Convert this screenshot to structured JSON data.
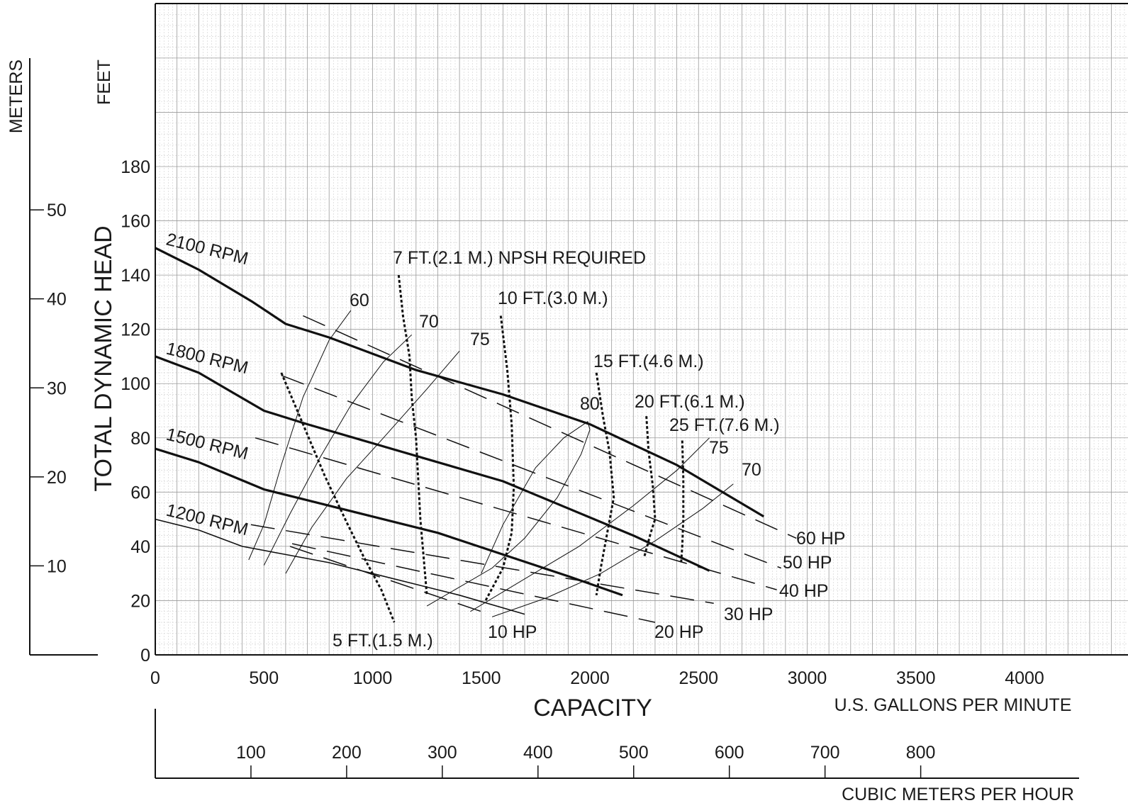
{
  "chart_data": {
    "type": "line",
    "title": "",
    "xlabel": "CAPACITY",
    "x_units_label": "U.S. GALLONS PER MINUTE",
    "secondary_x_units_label": "CUBIC METERS PER HOUR",
    "ylabel": "TOTAL DYNAMIC HEAD",
    "y_units_label": "FEET",
    "secondary_y_units_label": "METERS",
    "xlim": [
      0,
      4500
    ],
    "ylim": [
      0,
      240
    ],
    "x_ticks": [
      "0",
      "500",
      "1000",
      "1500",
      "2000",
      "2500",
      "3000",
      "3500",
      "4000"
    ],
    "y_ticks": [
      "0",
      "20",
      "40",
      "60",
      "80",
      "100",
      "120",
      "140",
      "160",
      "180"
    ],
    "secondary_x_ticks": [
      "100",
      "200",
      "300",
      "400",
      "500",
      "600",
      "700",
      "800"
    ],
    "secondary_y_ticks": [
      "10",
      "20",
      "30",
      "40",
      "50"
    ],
    "grid": true,
    "series": [
      {
        "name": "2100 RPM",
        "x": [
          0,
          200,
          450,
          600,
          800,
          1000,
          1200,
          1600,
          2000,
          2400,
          2800
        ],
        "y": [
          150,
          142,
          130,
          122,
          117,
          111,
          105,
          96,
          85,
          70,
          51
        ]
      },
      {
        "name": "1800 RPM",
        "x": [
          0,
          200,
          350,
          500,
          700,
          1000,
          1300,
          1600,
          1900,
          2200,
          2550
        ],
        "y": [
          110,
          104,
          97,
          90,
          85,
          78,
          71,
          64,
          54,
          44,
          31
        ]
      },
      {
        "name": "1500 RPM",
        "x": [
          0,
          200,
          350,
          500,
          700,
          1000,
          1300,
          1600,
          1900,
          2150
        ],
        "y": [
          76,
          71,
          66,
          61,
          57,
          51,
          45,
          37,
          29,
          22
        ]
      },
      {
        "name": "1200 RPM",
        "x": [
          0,
          200,
          400,
          600,
          800,
          1000,
          1200,
          1400,
          1700
        ],
        "y": [
          50,
          46,
          40,
          37,
          34,
          30,
          26,
          22,
          15
        ]
      }
    ],
    "hp_lines": [
      {
        "label": "60 HP",
        "x": [
          680,
          2950
        ],
        "y": [
          125,
          43
        ]
      },
      {
        "label": "50 HP",
        "x": [
          580,
          2880
        ],
        "y": [
          103,
          32
        ]
      },
      {
        "label": "40 HP",
        "x": [
          460,
          2860
        ],
        "y": [
          80,
          24
        ]
      },
      {
        "label": "30 HP",
        "x": [
          440,
          2570
        ],
        "y": [
          48,
          19
        ]
      },
      {
        "label": "20 HP",
        "x": [
          630,
          2300
        ],
        "y": [
          41,
          12
        ]
      },
      {
        "label": "10 HP",
        "x": [
          620,
          1500
        ],
        "y": [
          40,
          16
        ]
      }
    ],
    "npsh_curves": [
      {
        "label": "5 FT.(1.5 M.)",
        "x": [
          580,
          680,
          780,
          880,
          960,
          1040,
          1100
        ],
        "y": [
          104,
          85,
          66,
          49,
          36,
          24,
          12
        ]
      },
      {
        "label": "7 FT.(2.1 M.) NPSH REQUIRED",
        "x": [
          1120,
          1140,
          1170,
          1180,
          1200,
          1220,
          1250
        ],
        "y": [
          140,
          125,
          110,
          95,
          80,
          50,
          22
        ]
      },
      {
        "label": "10 FT.(3.0 M.)",
        "x": [
          1590,
          1620,
          1640,
          1650,
          1640,
          1600,
          1520
        ],
        "y": [
          125,
          105,
          85,
          62,
          45,
          32,
          20
        ]
      },
      {
        "label": "15 FT.(4.6 M.)",
        "x": [
          2030,
          2060,
          2090,
          2110,
          2080,
          2050,
          2030
        ],
        "y": [
          104,
          88,
          75,
          58,
          45,
          32,
          22
        ]
      },
      {
        "label": "20 FT.(6.1 M.)",
        "x": [
          2260,
          2270,
          2290,
          2300,
          2280,
          2250
        ],
        "y": [
          88,
          75,
          62,
          50,
          45,
          36
        ]
      },
      {
        "label": "25 FT.(7.6 M.)",
        "x": [
          2425,
          2430,
          2430,
          2425,
          2420
        ],
        "y": [
          79,
          65,
          50,
          40,
          34
        ]
      }
    ],
    "efficiency_curves": [
      {
        "label": "60",
        "x": [
          430,
          500,
          580,
          680,
          800,
          900
        ],
        "y": [
          35,
          48,
          70,
          95,
          116,
          127
        ]
      },
      {
        "label": "70",
        "x": [
          500,
          620,
          760,
          900,
          1050,
          1180
        ],
        "y": [
          33,
          52,
          73,
          92,
          108,
          118
        ]
      },
      {
        "label": "75",
        "x": [
          600,
          720,
          880,
          1050,
          1250,
          1400
        ],
        "y": [
          30,
          47,
          65,
          80,
          98,
          112
        ]
      },
      {
        "label": "80",
        "x": [
          1500,
          1600,
          1750,
          1880,
          1990,
          2000,
          1960,
          1850,
          1700,
          1550,
          1400,
          1250
        ],
        "y": [
          30,
          48,
          69,
          80,
          86,
          83,
          74,
          58,
          43,
          32,
          25,
          18
        ]
      },
      {
        "label": "75",
        "x": [
          1450,
          1700,
          1950,
          2200,
          2400,
          2550
        ],
        "y": [
          16,
          28,
          40,
          55,
          68,
          80
        ]
      },
      {
        "label": "70",
        "x": [
          1550,
          1800,
          2050,
          2300,
          2520,
          2660
        ],
        "y": [
          14,
          21,
          30,
          42,
          54,
          63
        ]
      }
    ],
    "annotations": [
      "2100 RPM",
      "1800 RPM",
      "1500 RPM",
      "1200 RPM",
      "60",
      "70",
      "75",
      "80",
      "75",
      "70",
      "60 HP",
      "50 HP",
      "40 HP",
      "30 HP",
      "20 HP",
      "10 HP",
      "5 FT.(1.5 M.)",
      "7 FT.(2.1 M.) NPSH REQUIRED",
      "10 FT.(3.0 M.)",
      "15 FT.(4.6 M.)",
      "20 FT.(6.1 M.)",
      "25 FT.(7.6 M.)"
    ]
  }
}
